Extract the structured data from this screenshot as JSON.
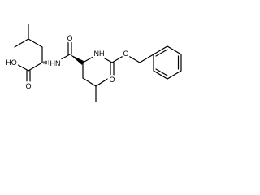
{
  "atoms": [
    {
      "label": "HO"
    },
    {
      "label": "O"
    },
    {
      "label": "HN"
    },
    {
      "label": "O"
    },
    {
      "label": "NH"
    },
    {
      "label": "O"
    },
    {
      "label": "O"
    }
  ]
}
